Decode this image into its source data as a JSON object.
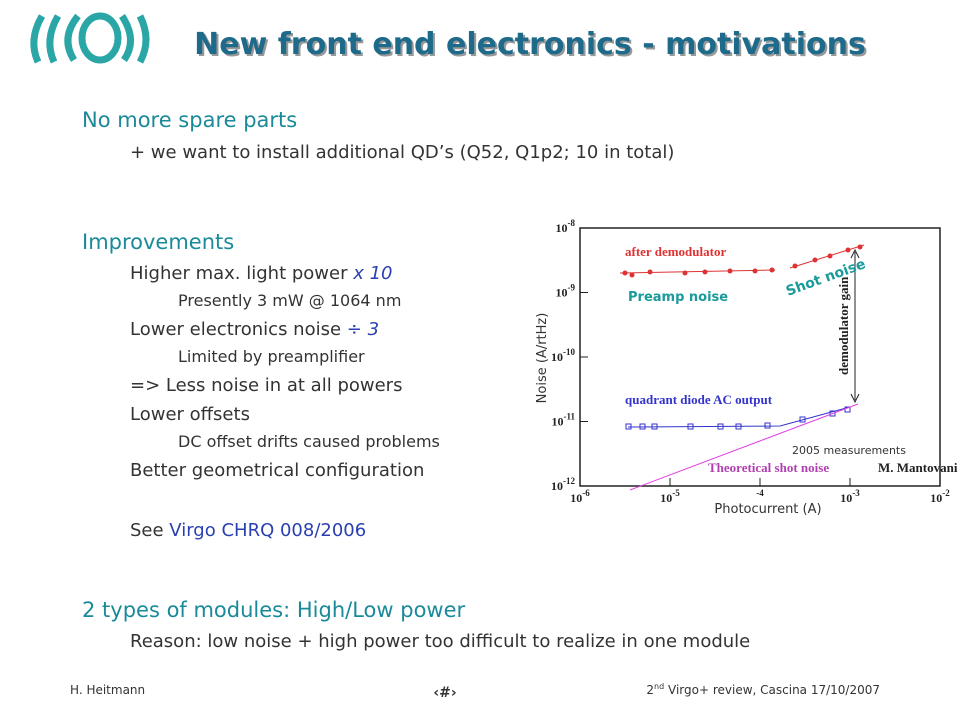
{
  "header": {
    "title": "New front end electronics - motivations"
  },
  "body": {
    "section1": {
      "heading": "No more spare parts",
      "items": [
        "+ we want to install additional QD’s (Q52, Q1p2; 10 in total)"
      ]
    },
    "section2": {
      "heading": "Improvements",
      "line1": {
        "text": "Higher max. light power ",
        "emph": "x 10"
      },
      "line2": "Presently 3 mW @ 1064 nm",
      "line3": {
        "text": "Lower electronics noise ",
        "emph": "÷ 3"
      },
      "line4": "Limited by preamplifier",
      "line5": "=> Less noise in at all powers",
      "line6": "Lower offsets",
      "line7": "DC offset drifts caused problems",
      "line8": "Better geometrical configuration",
      "line9": {
        "text": "See ",
        "emph": "Virgo CHRQ 008/2006"
      }
    },
    "section3": {
      "heading": "2 types of modules: High/Low power",
      "items": [
        "Reason: low noise + high power too difficult to realize in one module"
      ]
    }
  },
  "figure": {
    "y_ticks": [
      {
        "base": "10",
        "exp": "-8"
      },
      {
        "base": "10",
        "exp": "-9"
      },
      {
        "base": "10",
        "exp": "-10"
      },
      {
        "base": "10",
        "exp": "-11"
      },
      {
        "base": "10",
        "exp": "-12"
      }
    ],
    "x_ticks": [
      {
        "base": "10",
        "exp": "-6"
      },
      {
        "base": "10",
        "exp": "-5"
      },
      {
        "base": "",
        "exp": "-4"
      },
      {
        "base": "10",
        "exp": "-3"
      },
      {
        "base": "10",
        "exp": "-2"
      }
    ],
    "y_label": "Noise (A/rtHz)",
    "x_label": "Photocurrent (A)",
    "annotations": {
      "after": "after demodulator",
      "preamp": "Preamp noise",
      "shot": "Shot noise",
      "gain": "demodulator gain",
      "quadrant": "quadrant diode AC output",
      "measurements": "2005 measurements",
      "theory": "Theoretical shot noise",
      "author": "M. Mantovani"
    }
  },
  "footer": {
    "author": "H. Heitmann",
    "page": "‹#›",
    "event": {
      "num": "2",
      "sup": "nd",
      "rest": " Virgo+ review, Cascina 17/10/2007"
    }
  }
}
